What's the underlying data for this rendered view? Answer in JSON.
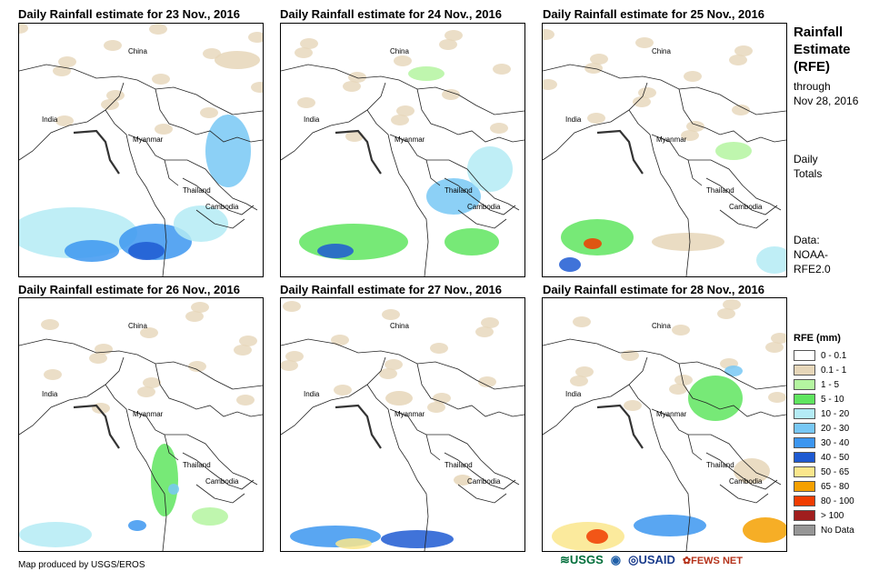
{
  "panels": [
    {
      "title": "Daily Rainfall estimate for 23 Nov., 2016"
    },
    {
      "title": "Daily Rainfall estimate for 24 Nov., 2016"
    },
    {
      "title": "Daily Rainfall estimate for 25 Nov., 2016"
    },
    {
      "title": "Daily Rainfall estimate for 26 Nov., 2016"
    },
    {
      "title": "Daily Rainfall estimate for 27 Nov., 2016"
    },
    {
      "title": "Daily Rainfall estimate for 28 Nov., 2016"
    }
  ],
  "map_labels": {
    "china": "China",
    "india": "India",
    "myanmar": "Myanmar",
    "thailand": "Thailand",
    "cambodia": "Cambodia"
  },
  "sidebar": {
    "title": "Rainfall Estimate (RFE)",
    "through": "through Nov 28, 2016",
    "daily": "Daily Totals",
    "data": "Data: NOAA-RFE2.0"
  },
  "legend": {
    "title": "RFE (mm)",
    "items": [
      {
        "label": "0 - 0.1",
        "color": "#ffffff"
      },
      {
        "label": "0.1 - 1",
        "color": "#e6d6b9"
      },
      {
        "label": "1 - 5",
        "color": "#b4f5a0"
      },
      {
        "label": "5 - 10",
        "color": "#5fe55f"
      },
      {
        "label": "10 - 20",
        "color": "#b4ebf5"
      },
      {
        "label": "20 - 30",
        "color": "#78c8f5"
      },
      {
        "label": "30 - 40",
        "color": "#3c96f0"
      },
      {
        "label": "40 - 50",
        "color": "#1e5ad2"
      },
      {
        "label": "50 - 65",
        "color": "#fae68c"
      },
      {
        "label": "65 - 80",
        "color": "#f5a000"
      },
      {
        "label": "80 - 100",
        "color": "#f03c00"
      },
      {
        "label": "> 100",
        "color": "#a01e1e"
      },
      {
        "label": "No Data",
        "color": "#969696"
      }
    ]
  },
  "credit": "Map produced by USGS/EROS",
  "logos": {
    "usgs": "USGS",
    "usaid": "USAID",
    "fewsnet": "FEWS NET"
  }
}
